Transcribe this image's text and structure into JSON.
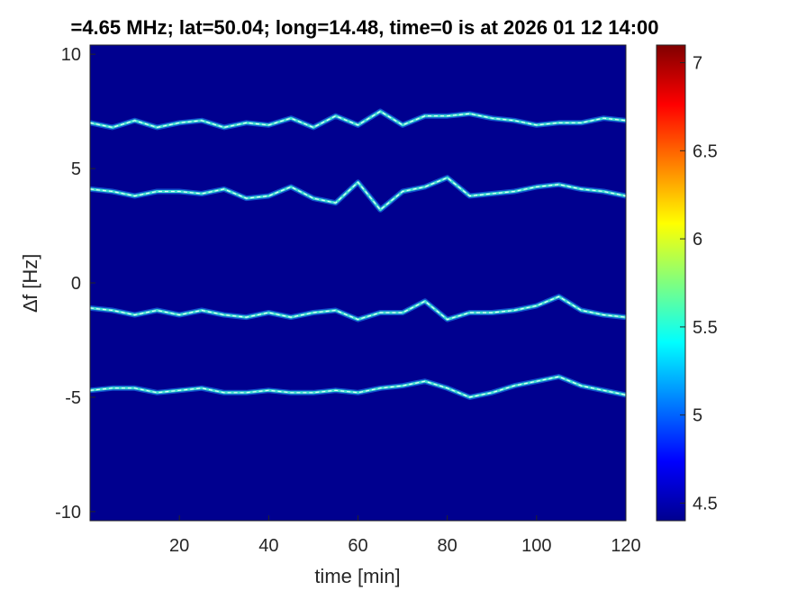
{
  "chart_data": {
    "type": "heatmap",
    "title": "=4.65 MHz;  lat=50.04; long=14.48, time=0 is at 2026 01 12 14:00",
    "xlabel": "time [min]",
    "ylabel": "∆f [Hz]",
    "xlim": [
      0,
      120
    ],
    "ylim": [
      -10.4,
      10.4
    ],
    "xticks": [
      20,
      40,
      60,
      80,
      100,
      120
    ],
    "xtick_labels": [
      "20",
      "40",
      "60",
      "80",
      "100",
      "120"
    ],
    "yticks": [
      10,
      5,
      0,
      -5,
      -10
    ],
    "ytick_labels": [
      "10",
      "5",
      "0",
      "-5",
      "-10"
    ],
    "colorbar": {
      "range": [
        4.4,
        7.1
      ],
      "ticks": [
        4.5,
        5,
        5.5,
        6,
        6.5,
        7
      ],
      "tick_labels": [
        "4.5",
        "5",
        "5.5",
        "6",
        "6.5",
        "7"
      ],
      "colormap": "jet"
    },
    "background_color": "#00008f",
    "traces": [
      {
        "points": [
          [
            0,
            7.0
          ],
          [
            5,
            6.8
          ],
          [
            10,
            7.1
          ],
          [
            15,
            6.8
          ],
          [
            20,
            7.0
          ],
          [
            25,
            7.1
          ],
          [
            30,
            6.8
          ],
          [
            35,
            7.0
          ],
          [
            40,
            6.9
          ],
          [
            45,
            7.2
          ],
          [
            50,
            6.8
          ],
          [
            55,
            7.3
          ],
          [
            60,
            6.9
          ],
          [
            65,
            7.5
          ],
          [
            70,
            6.9
          ],
          [
            75,
            7.3
          ],
          [
            80,
            7.3
          ],
          [
            85,
            7.4
          ],
          [
            90,
            7.2
          ],
          [
            95,
            7.1
          ],
          [
            100,
            6.9
          ],
          [
            105,
            7.0
          ],
          [
            110,
            7.0
          ],
          [
            115,
            7.2
          ],
          [
            120,
            7.1
          ]
        ]
      },
      {
        "points": [
          [
            0,
            4.1
          ],
          [
            5,
            4.0
          ],
          [
            10,
            3.8
          ],
          [
            15,
            4.0
          ],
          [
            20,
            4.0
          ],
          [
            25,
            3.9
          ],
          [
            30,
            4.1
          ],
          [
            35,
            3.7
          ],
          [
            40,
            3.8
          ],
          [
            45,
            4.2
          ],
          [
            50,
            3.7
          ],
          [
            55,
            3.5
          ],
          [
            60,
            4.4
          ],
          [
            65,
            3.2
          ],
          [
            70,
            4.0
          ],
          [
            75,
            4.2
          ],
          [
            80,
            4.6
          ],
          [
            85,
            3.8
          ],
          [
            90,
            3.9
          ],
          [
            95,
            4.0
          ],
          [
            100,
            4.2
          ],
          [
            105,
            4.3
          ],
          [
            110,
            4.1
          ],
          [
            115,
            4.0
          ],
          [
            120,
            3.8
          ]
        ]
      },
      {
        "points": [
          [
            0,
            -1.1
          ],
          [
            5,
            -1.2
          ],
          [
            10,
            -1.4
          ],
          [
            15,
            -1.2
          ],
          [
            20,
            -1.4
          ],
          [
            25,
            -1.2
          ],
          [
            30,
            -1.4
          ],
          [
            35,
            -1.5
          ],
          [
            40,
            -1.3
          ],
          [
            45,
            -1.5
          ],
          [
            50,
            -1.3
          ],
          [
            55,
            -1.2
          ],
          [
            60,
            -1.6
          ],
          [
            65,
            -1.3
          ],
          [
            70,
            -1.3
          ],
          [
            75,
            -0.8
          ],
          [
            80,
            -1.6
          ],
          [
            85,
            -1.3
          ],
          [
            90,
            -1.3
          ],
          [
            95,
            -1.2
          ],
          [
            100,
            -1.0
          ],
          [
            105,
            -0.6
          ],
          [
            110,
            -1.2
          ],
          [
            115,
            -1.4
          ],
          [
            120,
            -1.5
          ]
        ]
      },
      {
        "points": [
          [
            0,
            -4.7
          ],
          [
            5,
            -4.6
          ],
          [
            10,
            -4.6
          ],
          [
            15,
            -4.8
          ],
          [
            20,
            -4.7
          ],
          [
            25,
            -4.6
          ],
          [
            30,
            -4.8
          ],
          [
            35,
            -4.8
          ],
          [
            40,
            -4.7
          ],
          [
            45,
            -4.8
          ],
          [
            50,
            -4.8
          ],
          [
            55,
            -4.7
          ],
          [
            60,
            -4.8
          ],
          [
            65,
            -4.6
          ],
          [
            70,
            -4.5
          ],
          [
            75,
            -4.3
          ],
          [
            80,
            -4.6
          ],
          [
            85,
            -5.0
          ],
          [
            90,
            -4.8
          ],
          [
            95,
            -4.5
          ],
          [
            100,
            -4.3
          ],
          [
            105,
            -4.1
          ],
          [
            110,
            -4.5
          ],
          [
            115,
            -4.7
          ],
          [
            120,
            -4.9
          ]
        ]
      }
    ]
  }
}
